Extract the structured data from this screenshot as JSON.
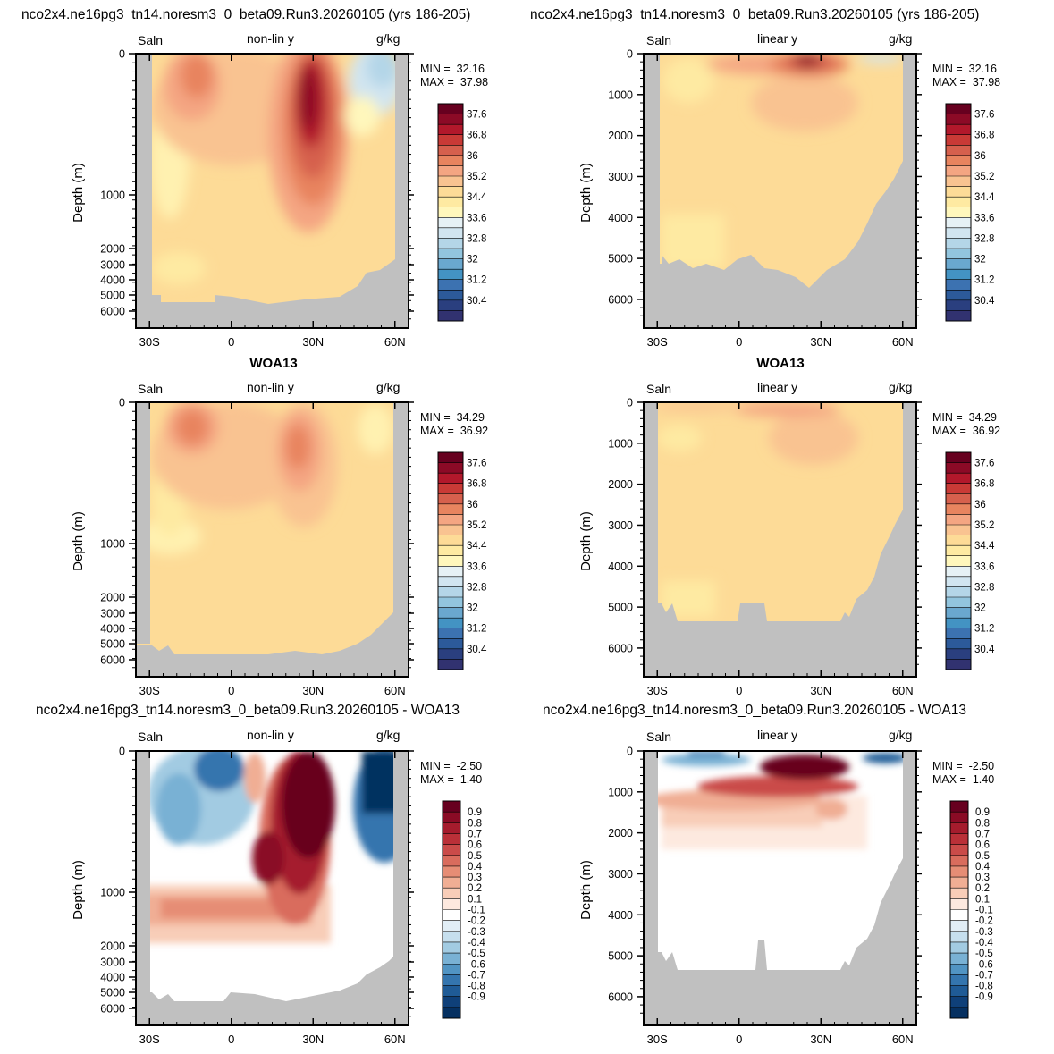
{
  "titles": {
    "top_left": "nco2x4.ne16pg3_tn14.noresm3_0_beta09.Run3.20260105 (yrs 186-205)",
    "top_right": "nco2x4.ne16pg3_tn14.noresm3_0_beta09.Run3.20260105 (yrs 186-205)",
    "mid_left": "WOA13",
    "mid_right": "WOA13",
    "bot_left": "nco2x4.ne16pg3_tn14.noresm3_0_beta09.Run3.20260105 - WOA13",
    "bot_right": "nco2x4.ne16pg3_tn14.noresm3_0_beta09.Run3.20260105 - WOA13"
  },
  "labels": {
    "variable": "Saln",
    "units": "g/kg",
    "nonlin": "non-lin y",
    "linear": "linear y",
    "ylabel": "Depth (m)",
    "x_ticks": [
      "30S",
      "0",
      "30N",
      "60N"
    ],
    "y_ticks_nonlin": [
      "0",
      "1000",
      "2000",
      "3000",
      "4000",
      "5000",
      "6000"
    ],
    "y_ticks_linear": [
      "0",
      "1000",
      "2000",
      "3000",
      "4000",
      "5000",
      "6000"
    ]
  },
  "stats": {
    "model": {
      "min_label": "MIN =",
      "min": "32.16",
      "max_label": "MAX =",
      "max": "37.98"
    },
    "obs": {
      "min_label": "MIN =",
      "min": "34.29",
      "max_label": "MAX =",
      "max": "36.92"
    },
    "diff": {
      "min_label": "MIN =",
      "min": "-2.50",
      "max_label": "MAX =",
      "max": "1.40"
    }
  },
  "colorbars": {
    "saln": {
      "labels": [
        "37.6",
        "36.8",
        "36",
        "35.2",
        "34.4",
        "33.6",
        "32.8",
        "32",
        "31.2",
        "30.4"
      ],
      "colors": [
        "#67001f",
        "#8c0a26",
        "#b2182b",
        "#c93a36",
        "#d6604d",
        "#e8845f",
        "#f4a582",
        "#f9c391",
        "#fddb97",
        "#feeaa2",
        "#fff7bc",
        "#e6f1f5",
        "#d1e5f0",
        "#b4d6e8",
        "#92c5de",
        "#6aa8cf",
        "#4393c3",
        "#3c72b1",
        "#2c5a9a",
        "#2a3f7f",
        "#313270"
      ]
    },
    "diff": {
      "labels": [
        "0.9",
        "0.8",
        "0.7",
        "0.6",
        "0.5",
        "0.4",
        "0.3",
        "0.2",
        "0.1",
        "-0.1",
        "-0.2",
        "-0.3",
        "-0.4",
        "-0.5",
        "-0.6",
        "-0.7",
        "-0.8",
        "-0.9"
      ],
      "colors": [
        "#67001f",
        "#8a0b25",
        "#a51c2d",
        "#ba3038",
        "#ca4b49",
        "#d96c5d",
        "#e68d75",
        "#f0ae94",
        "#f8cdb8",
        "#fde9df",
        "#ffffff",
        "#e2eef6",
        "#c6dfee",
        "#a2cbe2",
        "#79b1d4",
        "#5194c3",
        "#3475ae",
        "#1f5b96",
        "#0f4079",
        "#053061"
      ]
    }
  },
  "chart_data": [
    {
      "type": "heatmap",
      "panel": "model-non-lin-y",
      "title": "nco2x4.ne16pg3_tn14.noresm3_0_beta09.Run3.20260105 (yrs 186-205)",
      "variable": "Saln",
      "units": "g/kg",
      "ylabel": "Depth (m)",
      "xlim": [
        -35,
        65
      ],
      "ylim": [
        6500,
        0
      ],
      "y_scale": "non-linear",
      "min": 32.16,
      "max": 37.98,
      "features": [
        {
          "name": "subtropical N max",
          "lat": 28,
          "depth": 300,
          "value": 37.9
        },
        {
          "name": "subtropical S max",
          "lat": -18,
          "depth": 100,
          "value": 37.0
        },
        {
          "name": "Arctic fresh",
          "lat": 60,
          "depth": 100,
          "value": 33.0
        }
      ]
    },
    {
      "type": "heatmap",
      "panel": "model-linear-y",
      "title": "nco2x4.ne16pg3_tn14.noresm3_0_beta09.Run3.20260105 (yrs 186-205)",
      "variable": "Saln",
      "units": "g/kg",
      "ylabel": "Depth (m)",
      "xlim": [
        -35,
        65
      ],
      "ylim": [
        6700,
        0
      ],
      "y_scale": "linear",
      "min": 32.16,
      "max": 37.98
    },
    {
      "type": "heatmap",
      "panel": "woa13-non-lin-y",
      "title": "WOA13",
      "variable": "Saln",
      "units": "g/kg",
      "ylabel": "Depth (m)",
      "xlim": [
        -35,
        65
      ],
      "ylim": [
        6500,
        0
      ],
      "y_scale": "non-linear",
      "min": 34.29,
      "max": 36.92
    },
    {
      "type": "heatmap",
      "panel": "woa13-linear-y",
      "title": "WOA13",
      "variable": "Saln",
      "units": "g/kg",
      "ylabel": "Depth (m)",
      "xlim": [
        -35,
        65
      ],
      "ylim": [
        6700,
        0
      ],
      "y_scale": "linear",
      "min": 34.29,
      "max": 36.92
    },
    {
      "type": "heatmap",
      "panel": "diff-non-lin-y",
      "title": "nco2x4.ne16pg3_tn14.noresm3_0_beta09.Run3.20260105 - WOA13",
      "variable": "Saln",
      "units": "g/kg",
      "ylabel": "Depth (m)",
      "xlim": [
        -35,
        65
      ],
      "ylim": [
        6500,
        0
      ],
      "y_scale": "non-linear",
      "min": -2.5,
      "max": 1.4
    },
    {
      "type": "heatmap",
      "panel": "diff-linear-y",
      "title": "nco2x4.ne16pg3_tn14.noresm3_0_beta09.Run3.20260105 - WOA13",
      "variable": "Saln",
      "units": "g/kg",
      "ylabel": "Depth (m)",
      "xlim": [
        -35,
        65
      ],
      "ylim": [
        6700,
        0
      ],
      "y_scale": "linear",
      "min": -2.5,
      "max": 1.4
    }
  ]
}
